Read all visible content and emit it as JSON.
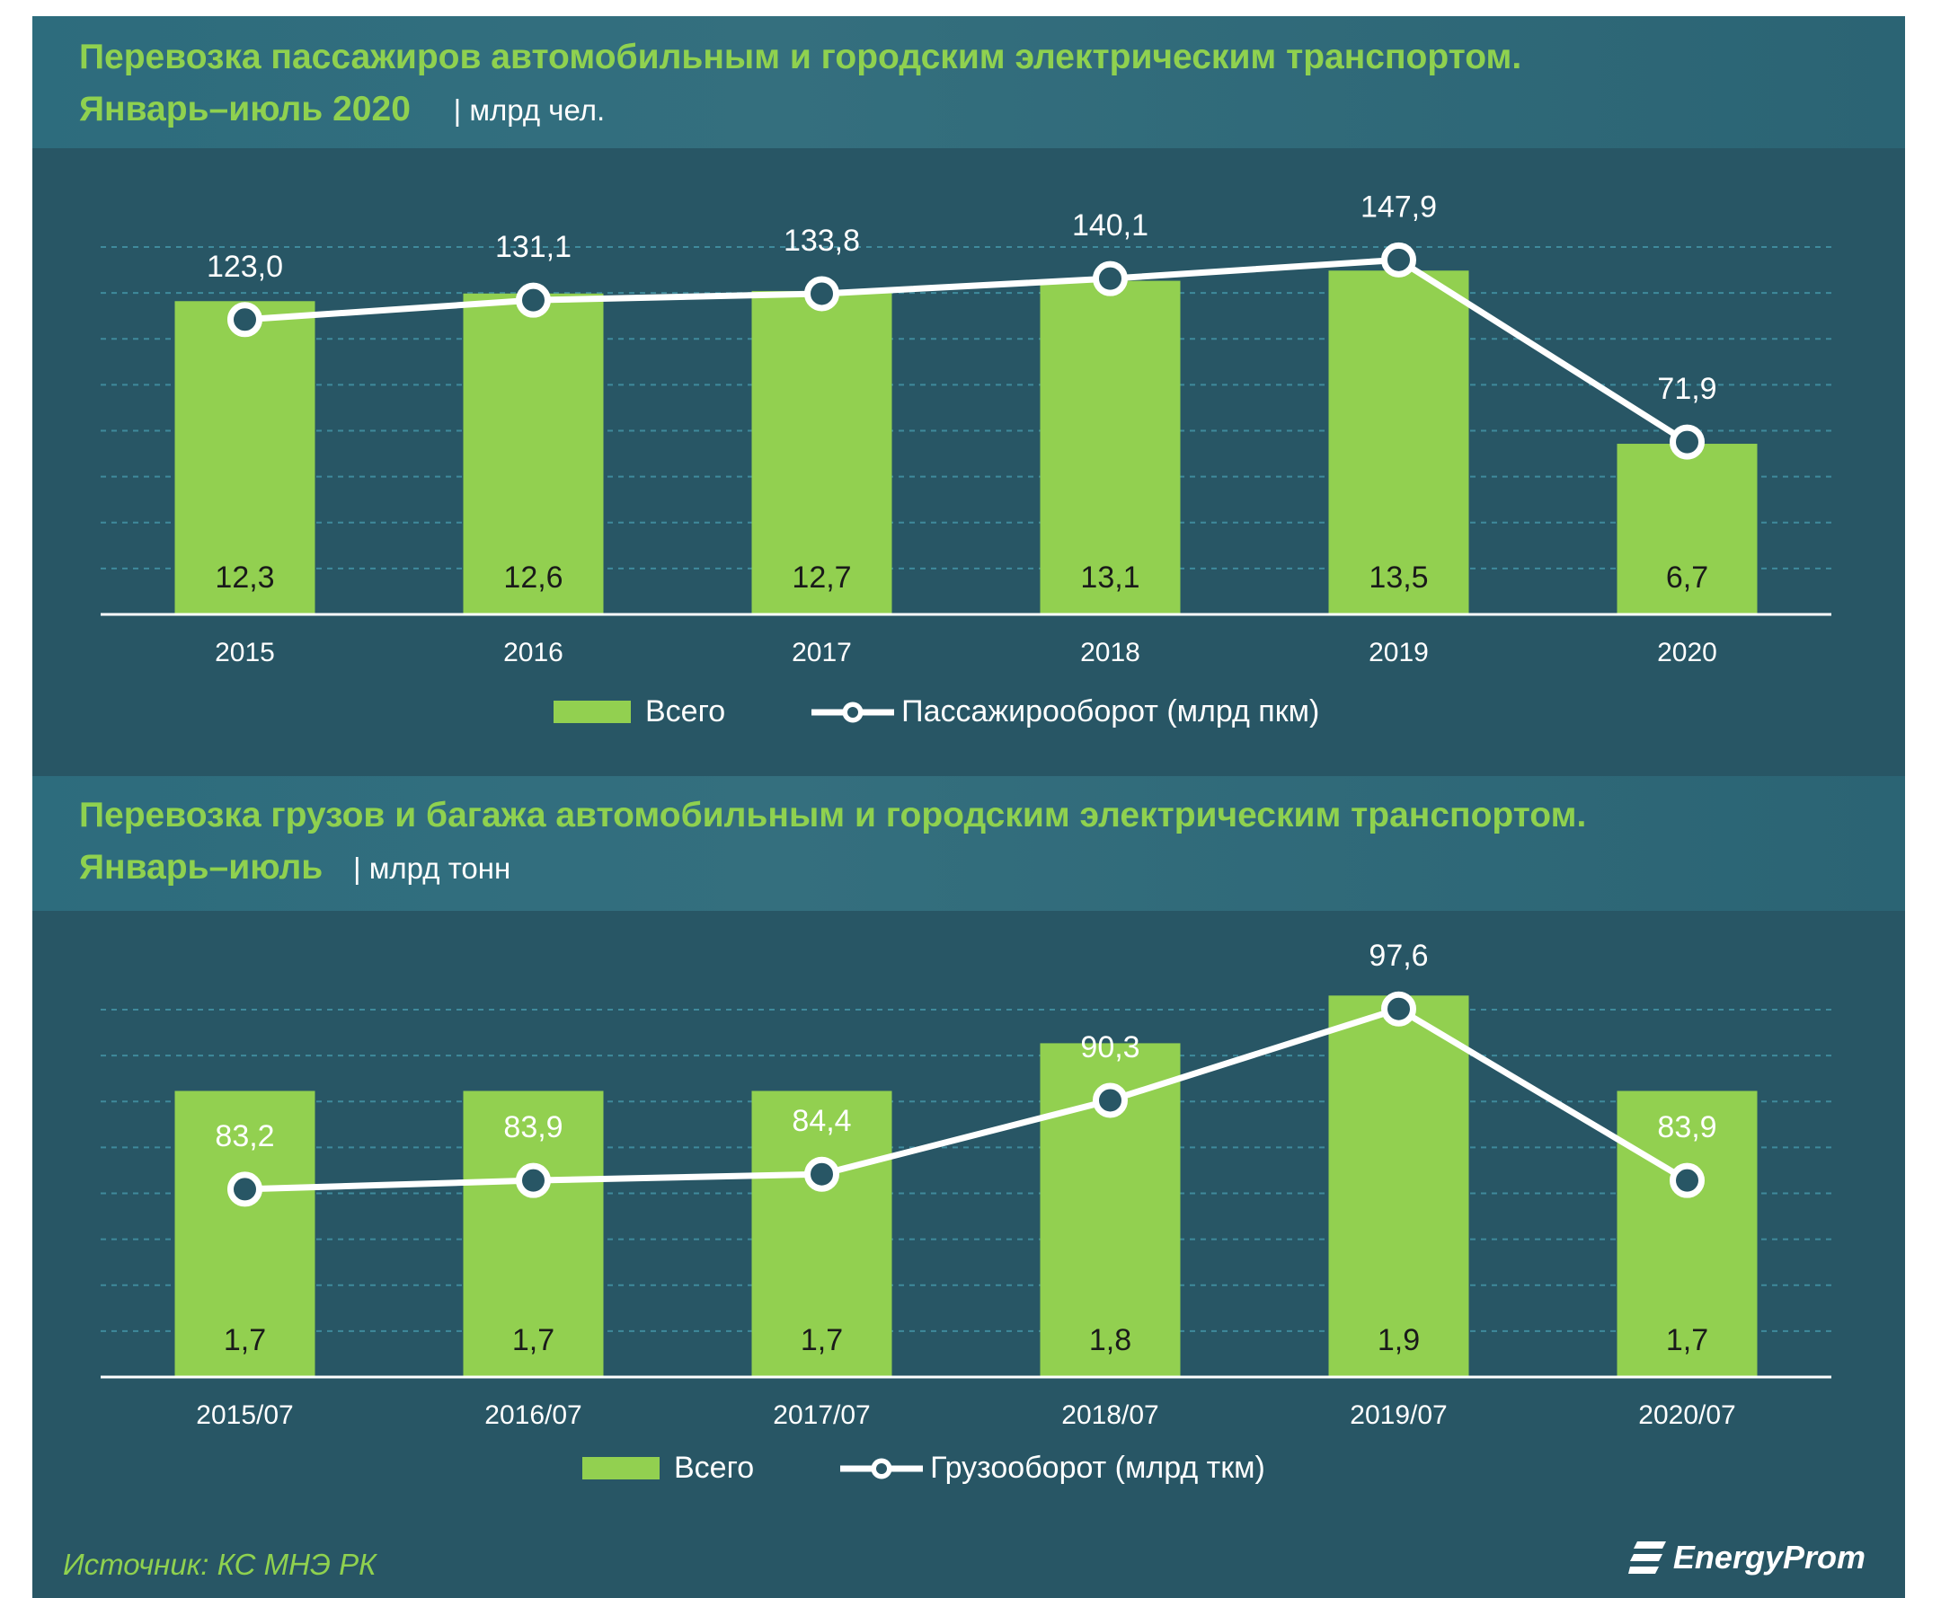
{
  "charts": [
    {
      "title_line1": "Перевозка пассажиров автомобильным и городским электрическим транспортом.",
      "title_line2": "Январь–июль 2020",
      "unit": "| млрд чел.",
      "legend": {
        "bars": "Всего",
        "line": "Пассажирооборот (млрд пкм)"
      }
    },
    {
      "title_line1": "Перевозка грузов и багажа автомобильным и городским электрическим транспортом.",
      "title_line2": "Январь–июль",
      "unit": "| млрд тонн",
      "legend": {
        "bars": "Всего",
        "line": "Грузооборот (млрд ткм)"
      }
    }
  ],
  "chart_data": [
    {
      "type": "bar",
      "categories": [
        "2015",
        "2016",
        "2017",
        "2018",
        "2019",
        "2020"
      ],
      "series": [
        {
          "name": "Всего",
          "type": "bar",
          "values": [
            12.3,
            12.6,
            12.7,
            13.1,
            13.5,
            6.7
          ],
          "labels": [
            "12,3",
            "12,6",
            "12,7",
            "13,1",
            "13,5",
            "6,7"
          ]
        },
        {
          "name": "Пассажирооборот (млрд пкм)",
          "type": "line",
          "values": [
            123.0,
            131.1,
            133.8,
            140.1,
            147.9,
            71.9
          ],
          "labels": [
            "123,0",
            "131,1",
            "133,8",
            "140,1",
            "147,9",
            "71,9"
          ]
        }
      ],
      "bar_ylim": [
        0,
        17.6
      ],
      "line_ylim": [
        0,
        187
      ],
      "grid": true,
      "legend_position": "bottom"
    },
    {
      "type": "bar",
      "categories": [
        "2015/07",
        "2016/07",
        "2017/07",
        "2018/07",
        "2019/07",
        "2020/07"
      ],
      "series": [
        {
          "name": "Всего",
          "type": "bar",
          "values": [
            1.7,
            1.7,
            1.7,
            1.8,
            1.9,
            1.7
          ],
          "labels": [
            "1,7",
            "1,7",
            "1,7",
            "1,8",
            "1,9",
            "1,7"
          ]
        },
        {
          "name": "Грузооборот (млрд ткм)",
          "type": "line",
          "values": [
            83.2,
            83.9,
            84.4,
            90.3,
            97.6,
            83.9
          ],
          "labels": [
            "83,2",
            "83,9",
            "84,4",
            "90,3",
            "97,6",
            "83,9"
          ]
        }
      ],
      "bar_ylim": [
        1.1,
        2.04
      ],
      "line_ylim": [
        68.2,
        104
      ],
      "grid": true,
      "legend_position": "bottom"
    }
  ],
  "footer": {
    "source": "Источник: КС МНЭ РК",
    "brand": "EnergyProm"
  },
  "colors": {
    "background": "#285665",
    "title_band": "#2d6c7d",
    "accent_green": "#92d050",
    "title_green": "#8fd14f",
    "line": "#ffffff",
    "grid": "#3f8a9c"
  }
}
